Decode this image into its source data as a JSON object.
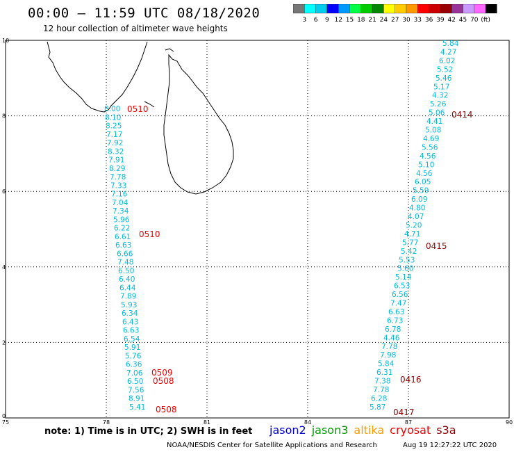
{
  "title": "00:00 – 11:59 UTC 08/18/2020",
  "subtitle": "12 hour collection of altimeter wave heights",
  "colorbar": {
    "colors": [
      "#777777",
      "#00ffff",
      "#00ccee",
      "#0000ff",
      "#0099ff",
      "#00ff44",
      "#00cc00",
      "#008800",
      "#ffff00",
      "#ffcc00",
      "#ff9900",
      "#ff0000",
      "#cc0000",
      "#990000",
      "#993399",
      "#cc99ff",
      "#ff66ff",
      "#000000"
    ],
    "labels": [
      "3",
      "6",
      "9",
      "12",
      "15",
      "18",
      "21",
      "24",
      "27",
      "30",
      "33",
      "36",
      "39",
      "42",
      "45",
      "70",
      "(ft)"
    ]
  },
  "axes": {
    "x_ticks": [
      "75",
      "78",
      "81",
      "84",
      "87",
      "90"
    ],
    "y_ticks": [
      "0",
      "2",
      "4",
      "6",
      "8",
      "10"
    ]
  },
  "tracks": {
    "west": {
      "values": [
        "8.00",
        "8.10",
        "8.25",
        "7.17",
        "7.92",
        "8.32",
        "7.91",
        "8.29",
        "7.78",
        "7.33",
        "7.16",
        "7.04",
        "7.34",
        "5.96",
        "6.22",
        "6.61",
        "6.63",
        "6.66",
        "7.48",
        "6.50",
        "6.40",
        "6.44",
        "7.89",
        "5.93",
        "6.34",
        "6.43",
        "6.63",
        "6.54",
        "5.91",
        "5.76",
        "6.36",
        "7.06",
        "6.50",
        "7.56",
        "8.91",
        "5.41"
      ],
      "times": [
        "0510",
        "0510",
        "0509",
        "0508",
        "0508"
      ]
    },
    "east": {
      "values": [
        "5.84",
        "4.27",
        "6.02",
        "5.52",
        "5.46",
        "5.17",
        "4.32",
        "5.26",
        "5.06",
        "4.41",
        "5.08",
        "4.69",
        "5.56",
        "4.56",
        "5.10",
        "4.56",
        "6.05",
        "5.59",
        "6.09",
        "4.80",
        "4.07",
        "5.20",
        "4.71",
        "5.77",
        "5.42",
        "5.53",
        "5.60",
        "5.14",
        "6.53",
        "6.56",
        "7.47",
        "6.63",
        "6.73",
        "6.78",
        "4.46",
        "7.78",
        "7.98",
        "5.84",
        "6.31",
        "7.38",
        "7.78",
        "6.28",
        "5.87"
      ],
      "times": [
        "0414",
        "0415",
        "0416",
        "0417"
      ]
    }
  },
  "footnote": "note:  1) Time is in UTC;  2) SWH is in feet",
  "satellites": [
    {
      "name": "jason2",
      "color": "#0000cc"
    },
    {
      "name": "jason3",
      "color": "#009900"
    },
    {
      "name": "altika",
      "color": "#ff9900"
    },
    {
      "name": "cryosat",
      "color": "#ee0000"
    },
    {
      "name": "s3a",
      "color": "#880000"
    }
  ],
  "credit": "NOAA/NESDIS Center for Satellite Applications and Research",
  "timestamp": "Aug 19 12:27:22 UTC 2020"
}
